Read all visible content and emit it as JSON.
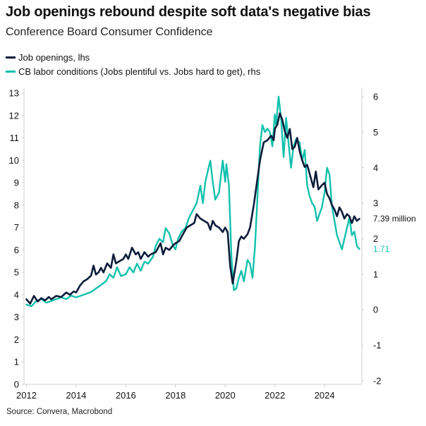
{
  "colors": {
    "job_openings": "#0c1c3a",
    "labor_conditions": "#12c1ad",
    "axis": "#cfcfcf"
  },
  "chart_data": {
    "type": "line",
    "title": "Job openings rebound despite soft data's negative bias",
    "subtitle": "Conference Board Consumer Confidence",
    "source": "Source: Convera, Macrobond",
    "x_range": [
      2011.9,
      2025.5
    ],
    "x_ticks": [
      2012,
      2014,
      2016,
      2018,
      2020,
      2022,
      2024
    ],
    "x_tick_labels": [
      "2012",
      "2014",
      "2016",
      "2018",
      "2020",
      "2022",
      "2024"
    ],
    "y_left": {
      "range": [
        0,
        13
      ],
      "ticks": [
        0,
        1,
        2,
        3,
        4,
        5,
        6,
        7,
        8,
        9,
        10,
        11,
        12,
        13
      ],
      "tick_labels": [
        "0",
        "1",
        "2",
        "3",
        "4",
        "5",
        "6",
        "7",
        "8",
        "9",
        "10",
        "11",
        "12",
        "13"
      ]
    },
    "y_right": {
      "range": [
        -2.1,
        6.1
      ],
      "ticks": [
        -2,
        -1,
        0,
        1,
        2,
        3,
        4,
        5,
        6
      ],
      "tick_labels": [
        "-2",
        "-1",
        "0",
        "1",
        "2",
        "3",
        "4",
        "5",
        "6"
      ]
    },
    "legend": [
      "Job openings, lhs",
      "CB labor conditions (Jobs plentiful vs. Jobs hard to get), rhs"
    ],
    "series": [
      {
        "name": "Job openings, lhs",
        "axis": "left",
        "end_label": "7.39 million",
        "points": [
          [
            2012.0,
            3.8
          ],
          [
            2012.15,
            3.6
          ],
          [
            2012.3,
            3.95
          ],
          [
            2012.45,
            3.7
          ],
          [
            2012.6,
            3.85
          ],
          [
            2012.75,
            3.75
          ],
          [
            2012.9,
            3.9
          ],
          [
            2013.0,
            3.8
          ],
          [
            2013.2,
            3.95
          ],
          [
            2013.4,
            3.9
          ],
          [
            2013.6,
            4.1
          ],
          [
            2013.75,
            4.0
          ],
          [
            2013.9,
            4.15
          ],
          [
            2014.0,
            4.1
          ],
          [
            2014.15,
            4.4
          ],
          [
            2014.3,
            4.6
          ],
          [
            2014.45,
            4.7
          ],
          [
            2014.6,
            4.85
          ],
          [
            2014.7,
            5.3
          ],
          [
            2014.8,
            4.9
          ],
          [
            2014.9,
            5.0
          ],
          [
            2015.0,
            5.2
          ],
          [
            2015.1,
            5.0
          ],
          [
            2015.25,
            5.4
          ],
          [
            2015.4,
            5.2
          ],
          [
            2015.5,
            5.8
          ],
          [
            2015.6,
            5.4
          ],
          [
            2015.75,
            5.5
          ],
          [
            2015.9,
            5.6
          ],
          [
            2016.0,
            5.8
          ],
          [
            2016.1,
            5.6
          ],
          [
            2016.25,
            6.1
          ],
          [
            2016.4,
            5.8
          ],
          [
            2016.5,
            5.9
          ],
          [
            2016.6,
            5.6
          ],
          [
            2016.75,
            5.9
          ],
          [
            2016.9,
            5.7
          ],
          [
            2017.0,
            5.8
          ],
          [
            2017.2,
            5.9
          ],
          [
            2017.4,
            6.3
          ],
          [
            2017.5,
            5.8
          ],
          [
            2017.6,
            6.1
          ],
          [
            2017.75,
            6.0
          ],
          [
            2017.9,
            6.2
          ],
          [
            2018.0,
            6.3
          ],
          [
            2018.15,
            6.4
          ],
          [
            2018.3,
            6.7
          ],
          [
            2018.45,
            7.0
          ],
          [
            2018.6,
            7.1
          ],
          [
            2018.75,
            7.2
          ],
          [
            2018.85,
            7.6
          ],
          [
            2019.0,
            7.4
          ],
          [
            2019.15,
            7.3
          ],
          [
            2019.3,
            7.2
          ],
          [
            2019.4,
            6.9
          ],
          [
            2019.5,
            7.3
          ],
          [
            2019.6,
            7.1
          ],
          [
            2019.75,
            7.0
          ],
          [
            2019.9,
            6.8
          ],
          [
            2020.0,
            7.0
          ],
          [
            2020.1,
            6.8
          ],
          [
            2020.2,
            5.3
          ],
          [
            2020.3,
            4.5
          ],
          [
            2020.45,
            5.5
          ],
          [
            2020.55,
            6.4
          ],
          [
            2020.65,
            6.6
          ],
          [
            2020.75,
            6.5
          ],
          [
            2020.9,
            6.7
          ],
          [
            2021.0,
            7.0
          ],
          [
            2021.15,
            8.0
          ],
          [
            2021.3,
            9.2
          ],
          [
            2021.4,
            10.0
          ],
          [
            2021.55,
            10.8
          ],
          [
            2021.7,
            10.9
          ],
          [
            2021.85,
            11.1
          ],
          [
            2021.95,
            10.9
          ],
          [
            2022.0,
            11.4
          ],
          [
            2022.1,
            11.6
          ],
          [
            2022.2,
            12.1
          ],
          [
            2022.3,
            11.8
          ],
          [
            2022.4,
            11.3
          ],
          [
            2022.5,
            11.0
          ],
          [
            2022.6,
            11.4
          ],
          [
            2022.7,
            10.5
          ],
          [
            2022.8,
            10.6
          ],
          [
            2022.9,
            11.0
          ],
          [
            2023.0,
            10.4
          ],
          [
            2023.1,
            10.0
          ],
          [
            2023.2,
            9.7
          ],
          [
            2023.3,
            9.8
          ],
          [
            2023.45,
            9.2
          ],
          [
            2023.55,
            8.8
          ],
          [
            2023.65,
            9.5
          ],
          [
            2023.75,
            8.7
          ],
          [
            2023.9,
            8.9
          ],
          [
            2024.0,
            9.0
          ],
          [
            2024.1,
            8.5
          ],
          [
            2024.2,
            8.3
          ],
          [
            2024.3,
            8.0
          ],
          [
            2024.4,
            7.8
          ],
          [
            2024.5,
            7.5
          ],
          [
            2024.6,
            7.9
          ],
          [
            2024.7,
            7.7
          ],
          [
            2024.8,
            7.4
          ],
          [
            2024.9,
            7.6
          ],
          [
            2025.0,
            7.5
          ],
          [
            2025.1,
            7.2
          ],
          [
            2025.2,
            7.5
          ],
          [
            2025.3,
            7.3
          ],
          [
            2025.4,
            7.39
          ]
        ]
      },
      {
        "name": "CB labor conditions (Jobs plentiful vs. Jobs hard to get), rhs",
        "axis": "right",
        "end_label": "1.71",
        "points": [
          [
            2012.0,
            0.15
          ],
          [
            2012.2,
            0.1
          ],
          [
            2012.4,
            0.25
          ],
          [
            2012.6,
            0.3
          ],
          [
            2012.8,
            0.2
          ],
          [
            2013.0,
            0.25
          ],
          [
            2013.2,
            0.3
          ],
          [
            2013.4,
            0.35
          ],
          [
            2013.6,
            0.3
          ],
          [
            2013.8,
            0.4
          ],
          [
            2014.0,
            0.35
          ],
          [
            2014.2,
            0.4
          ],
          [
            2014.4,
            0.45
          ],
          [
            2014.6,
            0.5
          ],
          [
            2014.8,
            0.6
          ],
          [
            2015.0,
            0.7
          ],
          [
            2015.2,
            0.8
          ],
          [
            2015.35,
            1.0
          ],
          [
            2015.5,
            0.9
          ],
          [
            2015.65,
            1.2
          ],
          [
            2015.8,
            0.95
          ],
          [
            2016.0,
            1.0
          ],
          [
            2016.15,
            1.2
          ],
          [
            2016.3,
            1.05
          ],
          [
            2016.45,
            1.3
          ],
          [
            2016.6,
            1.1
          ],
          [
            2016.75,
            1.35
          ],
          [
            2016.9,
            1.3
          ],
          [
            2017.0,
            1.4
          ],
          [
            2017.1,
            1.5
          ],
          [
            2017.2,
            1.8
          ],
          [
            2017.35,
            2.0
          ],
          [
            2017.5,
            1.9
          ],
          [
            2017.6,
            2.3
          ],
          [
            2017.75,
            2.15
          ],
          [
            2017.9,
            1.8
          ],
          [
            2018.0,
            1.7
          ],
          [
            2018.1,
            2.0
          ],
          [
            2018.25,
            2.2
          ],
          [
            2018.4,
            2.3
          ],
          [
            2018.55,
            2.6
          ],
          [
            2018.7,
            2.8
          ],
          [
            2018.85,
            3.0
          ],
          [
            2019.0,
            3.5
          ],
          [
            2019.1,
            3.0
          ],
          [
            2019.2,
            3.6
          ],
          [
            2019.3,
            3.9
          ],
          [
            2019.4,
            4.2
          ],
          [
            2019.5,
            3.6
          ],
          [
            2019.6,
            3.1
          ],
          [
            2019.75,
            3.3
          ],
          [
            2019.9,
            4.2
          ],
          [
            2020.0,
            3.6
          ],
          [
            2020.05,
            4.1
          ],
          [
            2020.15,
            3.5
          ],
          [
            2020.25,
            1.5
          ],
          [
            2020.35,
            0.55
          ],
          [
            2020.45,
            0.6
          ],
          [
            2020.55,
            0.9
          ],
          [
            2020.65,
            1.1
          ],
          [
            2020.75,
            0.8
          ],
          [
            2020.9,
            1.4
          ],
          [
            2021.0,
            1.3
          ],
          [
            2021.1,
            0.9
          ],
          [
            2021.2,
            1.8
          ],
          [
            2021.3,
            3.2
          ],
          [
            2021.4,
            4.6
          ],
          [
            2021.5,
            5.2
          ],
          [
            2021.6,
            5.0
          ],
          [
            2021.7,
            5.1
          ],
          [
            2021.8,
            5.0
          ],
          [
            2021.9,
            4.6
          ],
          [
            2022.0,
            5.5
          ],
          [
            2022.05,
            5.2
          ],
          [
            2022.15,
            6.0
          ],
          [
            2022.25,
            5.4
          ],
          [
            2022.35,
            4.3
          ],
          [
            2022.45,
            5.4
          ],
          [
            2022.55,
            4.7
          ],
          [
            2022.65,
            4.0
          ],
          [
            2022.75,
            4.6
          ],
          [
            2022.85,
            4.8
          ],
          [
            2023.0,
            4.7
          ],
          [
            2023.1,
            4.2
          ],
          [
            2023.2,
            4.5
          ],
          [
            2023.3,
            3.5
          ],
          [
            2023.4,
            3.2
          ],
          [
            2023.5,
            3.0
          ],
          [
            2023.6,
            2.9
          ],
          [
            2023.7,
            2.5
          ],
          [
            2023.8,
            2.7
          ],
          [
            2023.9,
            2.9
          ],
          [
            2024.0,
            3.3
          ],
          [
            2024.1,
            4.0
          ],
          [
            2024.2,
            3.8
          ],
          [
            2024.3,
            2.9
          ],
          [
            2024.4,
            2.5
          ],
          [
            2024.5,
            2.1
          ],
          [
            2024.6,
            1.9
          ],
          [
            2024.7,
            1.7
          ],
          [
            2024.8,
            2.0
          ],
          [
            2024.9,
            2.3
          ],
          [
            2025.0,
            2.6
          ],
          [
            2025.1,
            2.1
          ],
          [
            2025.2,
            2.2
          ],
          [
            2025.3,
            1.8
          ],
          [
            2025.4,
            1.71
          ]
        ]
      }
    ]
  }
}
